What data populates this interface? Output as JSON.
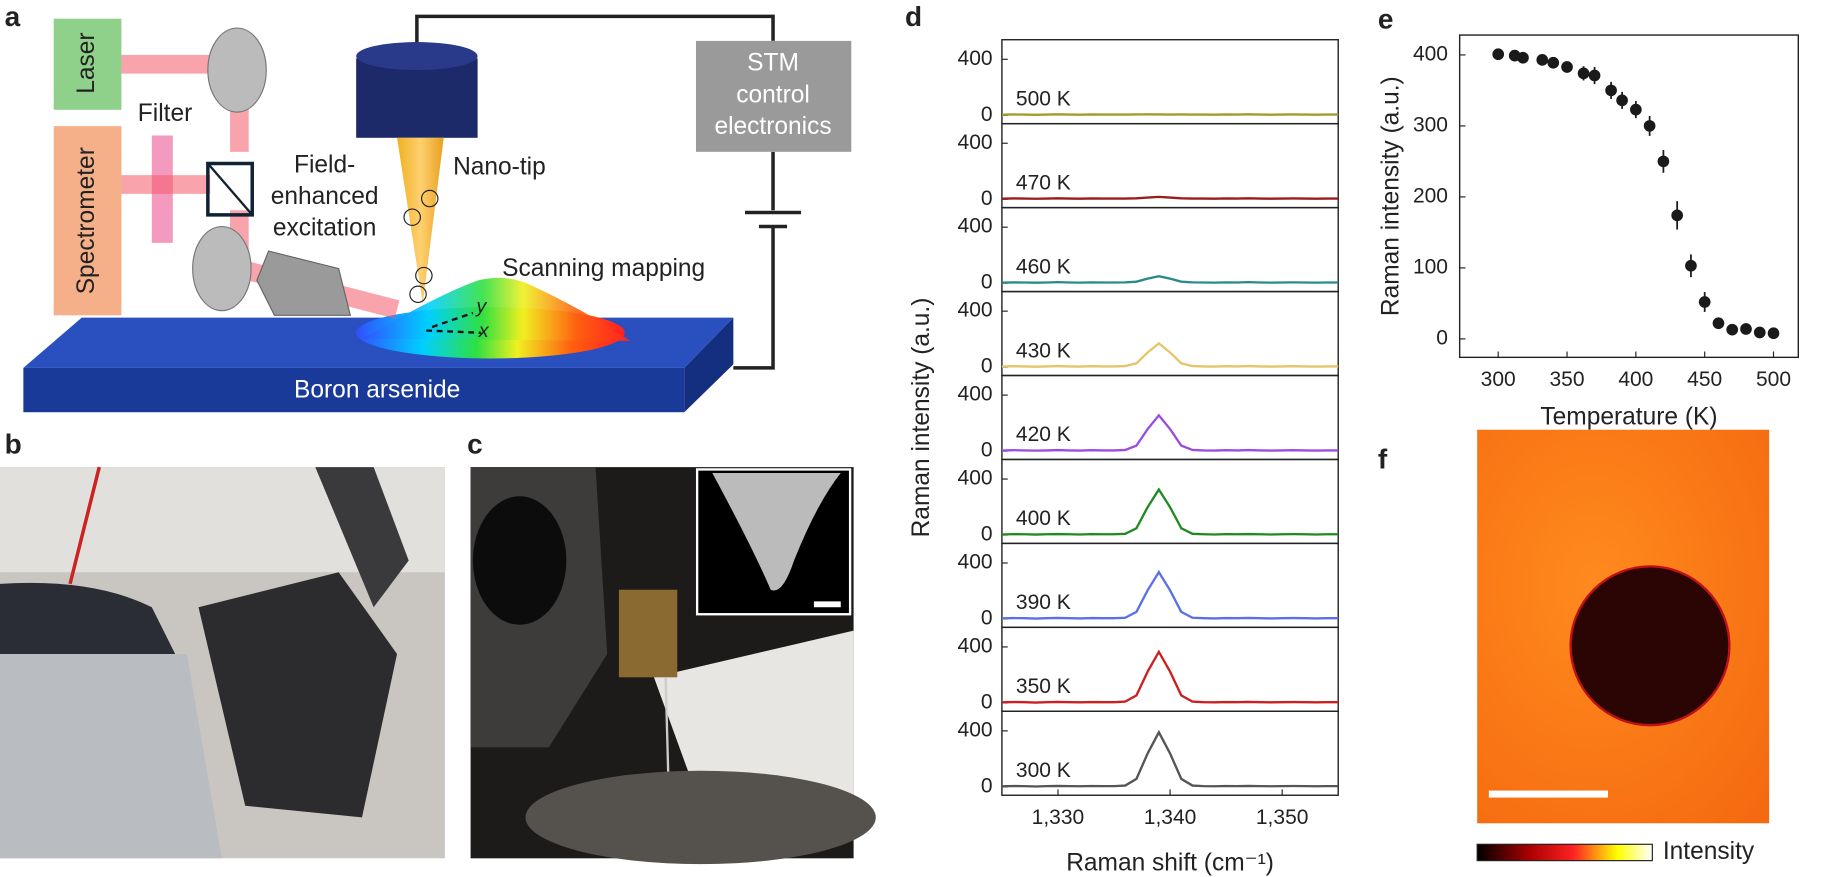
{
  "panel_labels": [
    "a",
    "b",
    "c",
    "d",
    "e",
    "f"
  ],
  "schematic": {
    "laser": "Laser",
    "spectrometer": "Spectrometer",
    "filter": "Filter",
    "excitation": [
      "Field-",
      "enhanced",
      "excitation"
    ],
    "nano_tip": "Nano-tip",
    "stm": [
      "STM",
      "control",
      "electronics"
    ],
    "scanning": "Scanning mapping",
    "substrate": "Boron arsenide",
    "axis_y": "y",
    "axis_x": "x"
  },
  "chart_data": [
    {
      "type": "stacked-line",
      "x_label": "Raman shift (cm⁻¹)",
      "y_label": "Raman intensity (a.u.)",
      "x": [
        1325,
        1326,
        1327,
        1328,
        1329,
        1330,
        1331,
        1332,
        1333,
        1334,
        1335,
        1336,
        1337,
        1338,
        1339,
        1340,
        1341,
        1342,
        1343,
        1344,
        1345,
        1346,
        1347,
        1348,
        1349,
        1350,
        1351,
        1352,
        1353,
        1354,
        1355
      ],
      "xlim": [
        1325,
        1355
      ],
      "xticks": [
        {
          "value": 1330,
          "label": "1,330"
        },
        {
          "value": 1340,
          "label": "1,340"
        },
        {
          "value": 1350,
          "label": "1,350"
        }
      ],
      "ylim": [
        -60,
        540
      ],
      "yticks": [
        0,
        400
      ],
      "series": [
        {
          "name": "500 K",
          "color": "#a39b2e",
          "values": [
            4,
            6,
            5,
            3,
            5,
            7,
            5,
            4,
            6,
            5,
            5,
            5,
            6,
            7,
            6,
            5,
            6,
            5,
            5,
            4,
            6,
            5,
            7,
            5,
            4,
            5,
            6,
            5,
            4,
            5,
            5
          ]
        },
        {
          "name": "470 K",
          "color": "#9b1c1c",
          "values": [
            4,
            6,
            5,
            3,
            5,
            7,
            5,
            4,
            6,
            5,
            5,
            5,
            7,
            12,
            17,
            12,
            7,
            5,
            5,
            4,
            6,
            5,
            7,
            5,
            4,
            5,
            6,
            5,
            4,
            5,
            5
          ]
        },
        {
          "name": "460 K",
          "color": "#2a8a8a",
          "values": [
            4,
            6,
            5,
            3,
            5,
            7,
            5,
            4,
            6,
            5,
            5,
            6,
            11,
            32,
            50,
            32,
            11,
            6,
            5,
            4,
            6,
            5,
            7,
            5,
            4,
            5,
            6,
            5,
            4,
            5,
            5
          ]
        },
        {
          "name": "430 K",
          "color": "#e6c46a",
          "values": [
            4,
            6,
            5,
            3,
            5,
            7,
            5,
            4,
            6,
            5,
            5,
            7,
            27,
            105,
            170,
            105,
            27,
            7,
            5,
            4,
            6,
            5,
            7,
            5,
            4,
            5,
            6,
            5,
            4,
            5,
            5
          ]
        },
        {
          "name": "420 K",
          "color": "#9a4de0",
          "values": [
            4,
            6,
            5,
            3,
            5,
            7,
            5,
            4,
            6,
            5,
            5,
            8,
            39,
            157,
            255,
            157,
            39,
            8,
            5,
            4,
            6,
            5,
            7,
            5,
            4,
            5,
            6,
            5,
            4,
            5,
            5
          ]
        },
        {
          "name": "400 K",
          "color": "#1f8a1f",
          "values": [
            4,
            6,
            5,
            3,
            5,
            7,
            5,
            4,
            6,
            5,
            5,
            9,
            48,
            199,
            325,
            199,
            48,
            9,
            5,
            4,
            6,
            5,
            7,
            5,
            4,
            5,
            6,
            5,
            4,
            5,
            5
          ]
        },
        {
          "name": "390 K",
          "color": "#5b6fe6",
          "values": [
            4,
            6,
            5,
            3,
            5,
            7,
            5,
            4,
            6,
            5,
            5,
            9,
            50,
            205,
            335,
            205,
            50,
            9,
            5,
            4,
            6,
            5,
            7,
            5,
            4,
            5,
            6,
            5,
            4,
            5,
            5
          ]
        },
        {
          "name": "350 K",
          "color": "#cc1f1f",
          "values": [
            4,
            6,
            5,
            3,
            5,
            7,
            5,
            4,
            6,
            5,
            5,
            9,
            54,
            224,
            365,
            224,
            54,
            9,
            5,
            4,
            6,
            5,
            7,
            5,
            4,
            5,
            6,
            5,
            4,
            5,
            5
          ]
        },
        {
          "name": "300 K",
          "color": "#555555",
          "values": [
            4,
            6,
            5,
            3,
            5,
            7,
            5,
            4,
            6,
            5,
            5,
            9,
            57,
            239,
            390,
            239,
            57,
            9,
            5,
            4,
            6,
            5,
            7,
            5,
            4,
            5,
            6,
            5,
            4,
            5,
            5
          ]
        }
      ]
    },
    {
      "type": "scatter",
      "x_label": "Temperature (K)",
      "y_label": "Raman intensity (a.u.)",
      "x": [
        300,
        312,
        318,
        332,
        340,
        350,
        362,
        370,
        382,
        390,
        400,
        410,
        420,
        430,
        440,
        450,
        460,
        470,
        480,
        490,
        500
      ],
      "values": [
        401,
        399,
        396,
        393,
        389,
        383,
        374,
        371,
        350,
        336,
        323,
        300,
        250,
        174,
        103,
        52,
        22,
        13,
        14,
        9,
        8
      ],
      "errors": [
        8,
        8,
        8,
        6,
        6,
        6,
        10,
        12,
        12,
        12,
        12,
        14,
        16,
        20,
        16,
        14,
        7,
        6,
        7,
        6,
        5
      ],
      "color": "#1a1a1a",
      "xlim": [
        272,
        518
      ],
      "xticks": [
        300,
        350,
        400,
        450,
        500
      ],
      "ylim": [
        -26,
        428
      ],
      "yticks": [
        0,
        100,
        200,
        300,
        400
      ]
    }
  ],
  "map": {
    "colorbar_label": "Intensity"
  }
}
